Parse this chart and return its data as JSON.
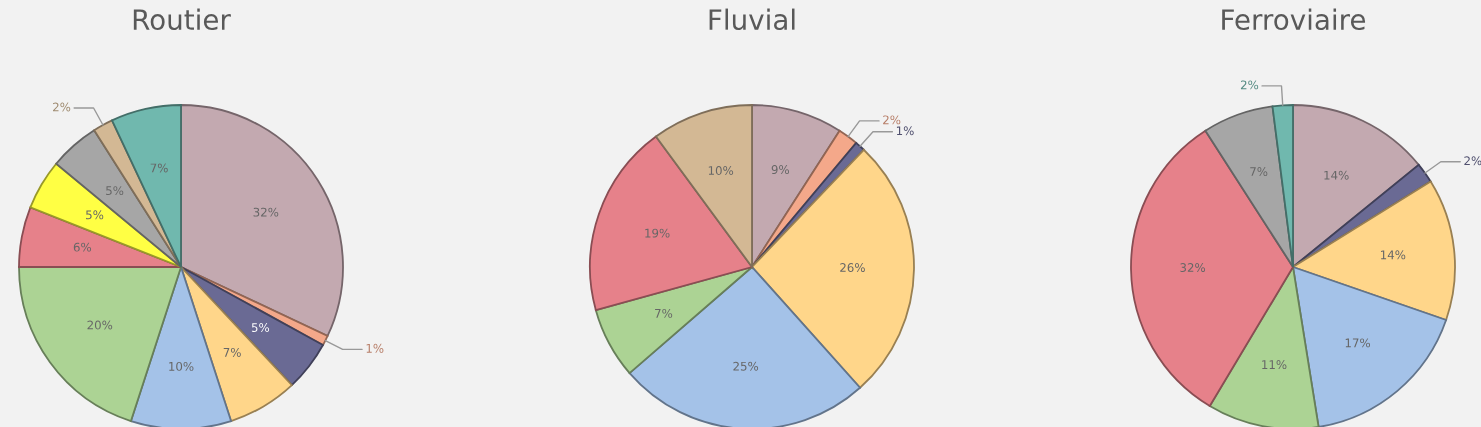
{
  "chart_data": [
    {
      "type": "pie",
      "title": "Routier",
      "categories": [
        null,
        null,
        null,
        null,
        null,
        null,
        null,
        null,
        null,
        null,
        null
      ],
      "values": [
        32,
        1,
        5,
        7,
        10,
        20,
        6,
        5,
        5,
        2,
        7
      ],
      "value_labels": [
        "32%",
        "1%",
        "5%",
        "7%",
        "10%",
        "20%",
        "6%",
        "5%",
        "5%",
        "2%",
        "7%"
      ],
      "colors": [
        "#c3a9b0",
        "#f4a88a",
        "#6a6a94",
        "#ffd68a",
        "#a4c2e8",
        "#acd394",
        "#e6818a",
        "#ffff44",
        "#a6a6a6",
        "#d3b894",
        "#70b8ae"
      ]
    },
    {
      "type": "pie",
      "title": "Fluvial",
      "categories": [
        null,
        null,
        null,
        null,
        null,
        null,
        null,
        null
      ],
      "values": [
        9,
        2,
        1,
        26,
        25,
        7,
        19,
        10
      ],
      "value_labels": [
        "9%",
        "2%",
        "1%",
        "26%",
        "25%",
        "7%",
        "19%",
        "10%"
      ],
      "colors": [
        "#c3a9b0",
        "#f4a88a",
        "#6a6a94",
        "#ffd68a",
        "#a4c2e8",
        "#acd394",
        "#e6818a",
        "#d3b894"
      ]
    },
    {
      "type": "pie",
      "title": "Ferroviaire",
      "categories": [
        null,
        null,
        null,
        null,
        null,
        null,
        null,
        null
      ],
      "values": [
        14,
        2,
        14,
        17,
        11,
        32,
        7,
        2
      ],
      "value_labels": [
        "14%",
        "2%",
        "14%",
        "17%",
        "11%",
        "32%",
        "7%",
        "2%"
      ],
      "colors": [
        "#c3a9b0",
        "#6a6a94",
        "#ffd68a",
        "#a4c2e8",
        "#acd394",
        "#e6818a",
        "#a6a6a6",
        "#70b8ae"
      ]
    }
  ]
}
